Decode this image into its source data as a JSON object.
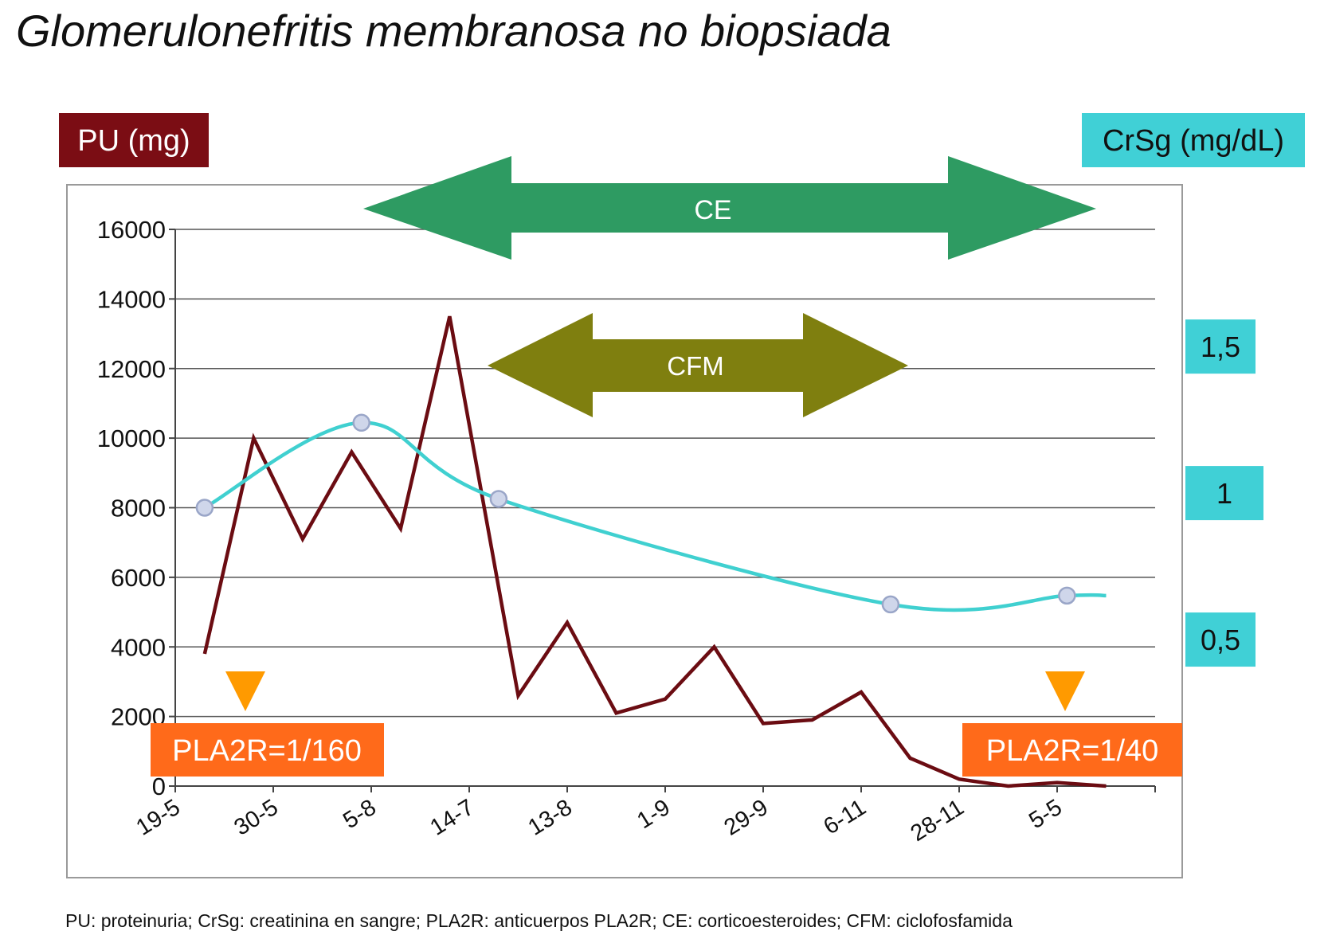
{
  "title": "Glomerulonefritis membranosa no biopsiada",
  "footnote": "PU: proteinuria; CrSg: creatinina en sangre; PLA2R: anticuerpos PLA2R; CE: corticoesteroides; CFM: ciclofosfamida",
  "left_axis_label": "PU (mg)",
  "right_axis_label": "CrSg (mg/dL)",
  "right_ticks": [
    {
      "label": "1,5",
      "value": 1.5
    },
    {
      "label": "1",
      "value": 1
    },
    {
      "label": "0,5",
      "value": 0.5
    }
  ],
  "arrows": [
    {
      "label": "CE",
      "color": "#2e9b62"
    },
    {
      "label": "CFM",
      "color": "#7f7f0f"
    }
  ],
  "markers": [
    {
      "label": "PLA2R=1/160"
    },
    {
      "label": "PLA2R=1/40"
    }
  ],
  "colors": {
    "pu": "#6b0c12",
    "crsg": "#40d0d0",
    "pla2r_box": "#ff6a1a",
    "pla2r_arrow": "#ff9a00",
    "pu_label_bg": "#7b0d14",
    "crsg_label_bg": "#40d0d6"
  },
  "chart_data": {
    "type": "line",
    "categories": [
      "19-5",
      "30-5",
      "5-8",
      "14-7",
      "13-8",
      "1-9",
      "29-9",
      "6-11",
      "28-11",
      "5-5"
    ],
    "ylim": [
      0,
      16000
    ],
    "y_ticks": [
      0,
      2000,
      4000,
      6000,
      8000,
      10000,
      12000,
      14000,
      16000
    ],
    "right_ylim": [
      0,
      1.9
    ],
    "series": [
      {
        "name": "PU (mg)",
        "axis": "left",
        "x": [
          0.3,
          0.8,
          1.3,
          1.8,
          2.3,
          2.8,
          3.5,
          4.0,
          4.5,
          5.0,
          5.5,
          6.0,
          6.5,
          7.0,
          7.5,
          8.0,
          8.5,
          9.0,
          9.5
        ],
        "values": [
          3800,
          10000,
          7100,
          9600,
          7400,
          13500,
          2600,
          4700,
          2100,
          2500,
          4000,
          1800,
          1900,
          2700,
          800,
          200,
          0,
          100,
          0
        ]
      },
      {
        "name": "CrSg (mg/dL)",
        "axis": "right",
        "x": [
          0.3,
          1.9,
          3.3,
          7.3,
          9.1,
          9.5
        ],
        "values": [
          0.95,
          1.24,
          0.98,
          0.62,
          0.65,
          0.65
        ],
        "points": [
          0.3,
          1.9,
          3.3,
          7.3,
          9.1
        ]
      }
    ]
  }
}
